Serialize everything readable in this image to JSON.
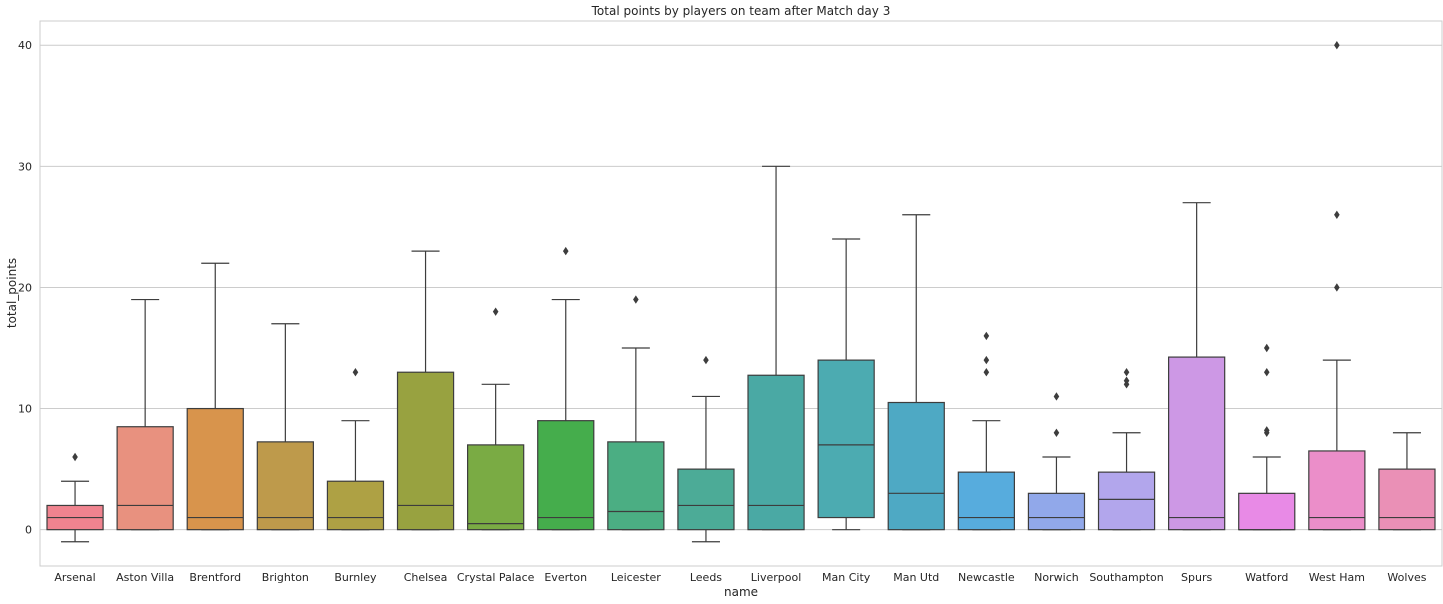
{
  "chart_data": {
    "type": "box",
    "title": "Total points by players on team after Match day 3",
    "xlabel": "name",
    "ylabel": "total_points",
    "ylim": [
      -3,
      42
    ],
    "yticks": [
      0,
      10,
      20,
      30,
      40
    ],
    "grid": "horizontal",
    "categories": [
      "Arsenal",
      "Aston Villa",
      "Brentford",
      "Brighton",
      "Burnley",
      "Chelsea",
      "Crystal Palace",
      "Everton",
      "Leicester",
      "Leeds",
      "Liverpool",
      "Man City",
      "Man Utd",
      "Newcastle",
      "Norwich",
      "Southampton",
      "Spurs",
      "Watford",
      "West Ham",
      "Wolves"
    ],
    "boxes": [
      {
        "team": "Arsenal",
        "color": "#f0838f",
        "whisker_low": -1,
        "q1": 0,
        "median": 1,
        "q3": 2,
        "whisker_high": 4,
        "outliers": [
          6
        ]
      },
      {
        "team": "Aston Villa",
        "color": "#e8917f",
        "whisker_low": 0,
        "q1": 0,
        "median": 2,
        "q3": 8.5,
        "whisker_high": 19,
        "outliers": []
      },
      {
        "team": "Brentford",
        "color": "#d8944c",
        "whisker_low": 0,
        "q1": 0,
        "median": 1,
        "q3": 10,
        "whisker_high": 22,
        "outliers": []
      },
      {
        "team": "Brighton",
        "color": "#be9a4b",
        "whisker_low": 0,
        "q1": 0,
        "median": 1,
        "q3": 7.25,
        "whisker_high": 17,
        "outliers": []
      },
      {
        "team": "Burnley",
        "color": "#aea144",
        "whisker_low": 0,
        "q1": 0,
        "median": 1,
        "q3": 4,
        "whisker_high": 9,
        "outliers": [
          13
        ]
      },
      {
        "team": "Chelsea",
        "color": "#98a240",
        "whisker_low": 0,
        "q1": 0,
        "median": 2,
        "q3": 13,
        "whisker_high": 23,
        "outliers": []
      },
      {
        "team": "Crystal Palace",
        "color": "#7aab44",
        "whisker_low": 0,
        "q1": 0,
        "median": 0.5,
        "q3": 7,
        "whisker_high": 12,
        "outliers": [
          18
        ]
      },
      {
        "team": "Everton",
        "color": "#45ad4c",
        "whisker_low": 0,
        "q1": 0,
        "median": 1,
        "q3": 9,
        "whisker_high": 19,
        "outliers": [
          23
        ]
      },
      {
        "team": "Leicester",
        "color": "#4bae83",
        "whisker_low": 0,
        "q1": 0,
        "median": 1.5,
        "q3": 7.25,
        "whisker_high": 15,
        "outliers": [
          19
        ]
      },
      {
        "team": "Leeds",
        "color": "#4cab97",
        "whisker_low": -1,
        "q1": 0,
        "median": 2,
        "q3": 5,
        "whisker_high": 11,
        "outliers": [
          14
        ]
      },
      {
        "team": "Liverpool",
        "color": "#4aa9a4",
        "whisker_low": 0,
        "q1": 0,
        "median": 2,
        "q3": 12.75,
        "whisker_high": 30,
        "outliers": []
      },
      {
        "team": "Man City",
        "color": "#4cabb1",
        "whisker_low": 0,
        "q1": 1,
        "median": 7,
        "q3": 14,
        "whisker_high": 24,
        "outliers": []
      },
      {
        "team": "Man Utd",
        "color": "#4ea9c4",
        "whisker_low": 0,
        "q1": 0,
        "median": 3,
        "q3": 10.5,
        "whisker_high": 26,
        "outliers": []
      },
      {
        "team": "Newcastle",
        "color": "#57acdd",
        "whisker_low": 0,
        "q1": 0,
        "median": 1,
        "q3": 4.75,
        "whisker_high": 9,
        "outliers": [
          13,
          14,
          16
        ]
      },
      {
        "team": "Norwich",
        "color": "#91a8ea",
        "whisker_low": 0,
        "q1": 0,
        "median": 1,
        "q3": 3,
        "whisker_high": 6,
        "outliers": [
          8,
          11
        ]
      },
      {
        "team": "Southampton",
        "color": "#b2a6ec",
        "whisker_low": 0,
        "q1": 0,
        "median": 2.5,
        "q3": 4.75,
        "whisker_high": 8,
        "outliers": [
          12,
          12.3,
          13
        ]
      },
      {
        "team": "Spurs",
        "color": "#cd98e5",
        "whisker_low": 0,
        "q1": 0,
        "median": 1,
        "q3": 14.25,
        "whisker_high": 27,
        "outliers": []
      },
      {
        "team": "Watford",
        "color": "#e88ae6",
        "whisker_low": 0,
        "q1": 0,
        "median": 0,
        "q3": 3,
        "whisker_high": 6,
        "outliers": [
          8,
          8.2,
          13,
          15
        ]
      },
      {
        "team": "West Ham",
        "color": "#eb8ec9",
        "whisker_low": 0,
        "q1": 0,
        "median": 1,
        "q3": 6.5,
        "whisker_high": 14,
        "outliers": [
          20,
          26,
          40
        ]
      },
      {
        "team": "Wolves",
        "color": "#ea90b6",
        "whisker_low": 0,
        "q1": 0,
        "median": 1,
        "q3": 5,
        "whisker_high": 8,
        "outliers": []
      }
    ]
  }
}
